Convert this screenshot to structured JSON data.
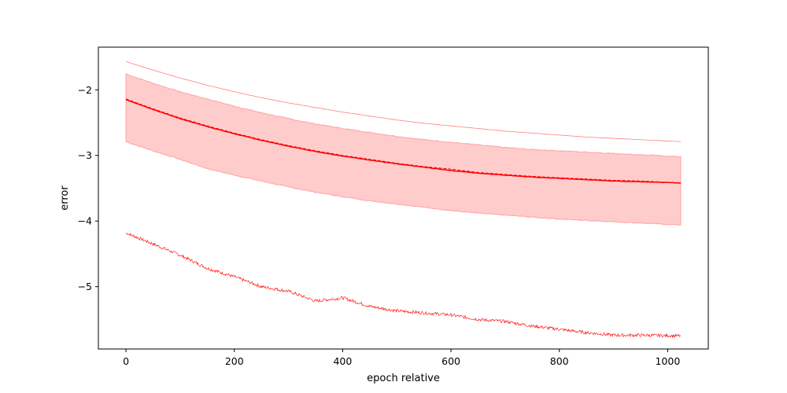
{
  "chart_data": {
    "type": "line",
    "title": "",
    "xlabel": "epoch relative",
    "ylabel": "error",
    "xlim": [
      -51,
      1075
    ],
    "ylim": [
      -5.95,
      -1.35
    ],
    "x_ticks": [
      0,
      200,
      400,
      600,
      800,
      1000
    ],
    "x_tick_labels": [
      "0",
      "200",
      "400",
      "600",
      "800",
      "1000"
    ],
    "y_ticks": [
      -5,
      -4,
      -3,
      -2
    ],
    "y_tick_labels": [
      "−5",
      "−4",
      "−3",
      "−2"
    ],
    "grid": false,
    "legend": "none",
    "colors": {
      "series": "#ff0000",
      "band_fill": "#ffcccc",
      "band_edge": "#ffaaaa",
      "upper": "#ff7f7f"
    },
    "series": [
      {
        "role": "mean",
        "style": "solid",
        "x": [
          0,
          50,
          100,
          150,
          200,
          250,
          300,
          350,
          400,
          450,
          500,
          550,
          600,
          650,
          700,
          750,
          800,
          850,
          900,
          950,
          1024
        ],
        "y": [
          -2.15,
          -2.3,
          -2.44,
          -2.56,
          -2.67,
          -2.77,
          -2.86,
          -2.94,
          -3.01,
          -3.07,
          -3.13,
          -3.18,
          -3.23,
          -3.27,
          -3.3,
          -3.33,
          -3.35,
          -3.37,
          -3.39,
          -3.4,
          -3.42
        ]
      },
      {
        "role": "median",
        "style": "dashed",
        "x": [
          0,
          50,
          100,
          150,
          200,
          250,
          300,
          350,
          400,
          450,
          500,
          550,
          600,
          650,
          700,
          750,
          800,
          850,
          900,
          950,
          1024
        ],
        "y": [
          -2.14,
          -2.29,
          -2.43,
          -2.55,
          -2.66,
          -2.76,
          -2.85,
          -2.93,
          -3.0,
          -3.06,
          -3.12,
          -3.17,
          -3.21,
          -3.26,
          -3.29,
          -3.32,
          -3.34,
          -3.36,
          -3.38,
          -3.39,
          -3.42
        ]
      },
      {
        "role": "band_upper",
        "x": [
          0,
          50,
          100,
          150,
          200,
          250,
          300,
          350,
          400,
          450,
          500,
          550,
          600,
          650,
          700,
          750,
          800,
          850,
          900,
          950,
          1024
        ],
        "y": [
          -1.76,
          -1.9,
          -2.03,
          -2.14,
          -2.25,
          -2.35,
          -2.44,
          -2.52,
          -2.59,
          -2.65,
          -2.71,
          -2.76,
          -2.8,
          -2.84,
          -2.88,
          -2.91,
          -2.93,
          -2.95,
          -2.97,
          -2.99,
          -3.02
        ]
      },
      {
        "role": "band_lower",
        "x": [
          0,
          50,
          100,
          150,
          200,
          250,
          300,
          350,
          400,
          450,
          500,
          550,
          600,
          650,
          700,
          750,
          800,
          850,
          900,
          950,
          1024
        ],
        "y": [
          -2.79,
          -2.93,
          -3.06,
          -3.2,
          -3.3,
          -3.39,
          -3.48,
          -3.56,
          -3.63,
          -3.69,
          -3.74,
          -3.79,
          -3.84,
          -3.88,
          -3.91,
          -3.94,
          -3.97,
          -3.99,
          -4.01,
          -4.03,
          -4.06
        ]
      },
      {
        "role": "upper",
        "style": "solid-thin",
        "x": [
          0,
          50,
          100,
          150,
          200,
          250,
          300,
          350,
          400,
          450,
          500,
          550,
          600,
          650,
          700,
          750,
          800,
          850,
          900,
          950,
          1024
        ],
        "y": [
          -1.57,
          -1.7,
          -1.82,
          -1.93,
          -2.03,
          -2.12,
          -2.2,
          -2.27,
          -2.34,
          -2.4,
          -2.46,
          -2.51,
          -2.55,
          -2.59,
          -2.63,
          -2.66,
          -2.69,
          -2.72,
          -2.74,
          -2.76,
          -2.79
        ]
      },
      {
        "role": "lower",
        "style": "solid-thin-noisy",
        "x": [
          0,
          50,
          100,
          150,
          200,
          250,
          300,
          350,
          400,
          450,
          500,
          550,
          600,
          650,
          700,
          750,
          800,
          850,
          900,
          950,
          1024
        ],
        "y": [
          -4.18,
          -4.35,
          -4.52,
          -4.72,
          -4.85,
          -5.0,
          -5.07,
          -5.22,
          -5.17,
          -5.3,
          -5.37,
          -5.4,
          -5.43,
          -5.5,
          -5.53,
          -5.6,
          -5.65,
          -5.7,
          -5.74,
          -5.74,
          -5.75
        ]
      }
    ]
  }
}
